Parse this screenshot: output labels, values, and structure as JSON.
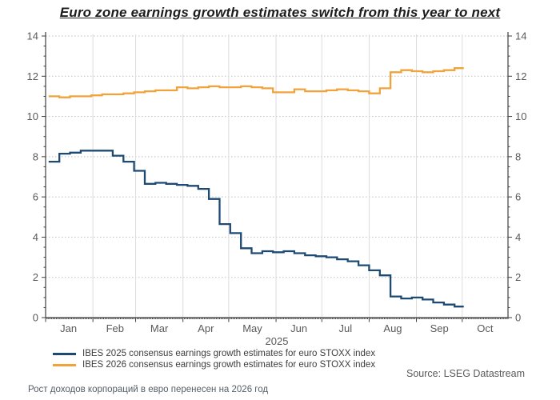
{
  "header": {
    "title": "Euro zone earnings growth estimates switch from this year to next"
  },
  "chart_data": {
    "type": "line",
    "step_interpolation": true,
    "title": "Euro zone earnings growth estimates switch from this year to next",
    "x_axis": {
      "label": "2025",
      "unit": "day of year 2025",
      "domain_days": [
        0,
        303
      ],
      "month_ticks": [
        {
          "label": "Jan",
          "start_day": 0,
          "mid_day": 15
        },
        {
          "label": "Feb",
          "start_day": 31,
          "mid_day": 45.5
        },
        {
          "label": "Mar",
          "start_day": 59,
          "mid_day": 74.5
        },
        {
          "label": "Apr",
          "start_day": 90,
          "mid_day": 105
        },
        {
          "label": "May",
          "start_day": 120,
          "mid_day": 135.5
        },
        {
          "label": "Jun",
          "start_day": 151,
          "mid_day": 166
        },
        {
          "label": "Jul",
          "start_day": 181,
          "mid_day": 196.5
        },
        {
          "label": "Aug",
          "start_day": 212,
          "mid_day": 227.5
        },
        {
          "label": "Sep",
          "start_day": 243,
          "mid_day": 258
        },
        {
          "label": "Oct",
          "start_day": 273,
          "mid_day": 288
        }
      ]
    },
    "y_axis": {
      "min": 0,
      "max": 14,
      "major_step": 2,
      "minor_step": 0.5,
      "tick_labels": [
        "0",
        "2",
        "4",
        "6",
        "8",
        "10",
        "12",
        "14"
      ],
      "sides": "both"
    },
    "grid": {
      "horizontal_dotted": true,
      "vertical": true
    },
    "legend_position": "bottom-left",
    "days": [
      2,
      9,
      16,
      23,
      30,
      37,
      44,
      51,
      58,
      65,
      72,
      79,
      86,
      93,
      100,
      107,
      114,
      121,
      128,
      135,
      142,
      149,
      156,
      163,
      170,
      177,
      184,
      191,
      198,
      205,
      212,
      219,
      226,
      233,
      240,
      247,
      254,
      261,
      268
    ],
    "series": [
      {
        "name": "IBES 2025 consensus earnings growth estimates for euro STOXX index",
        "color": "#1d4a74",
        "values": [
          7.75,
          8.15,
          8.2,
          8.3,
          8.3,
          8.3,
          8.05,
          7.75,
          7.3,
          6.65,
          6.7,
          6.65,
          6.6,
          6.55,
          6.4,
          5.9,
          4.65,
          4.2,
          3.45,
          3.2,
          3.3,
          3.25,
          3.3,
          3.2,
          3.1,
          3.05,
          3.0,
          2.9,
          2.8,
          2.6,
          2.35,
          2.1,
          1.05,
          0.95,
          1.0,
          0.9,
          0.75,
          0.65,
          0.55
        ]
      },
      {
        "name": "IBES 2026 consensus earnings growth estimates for euro STOXX index",
        "color": "#f1a33a",
        "values": [
          11.0,
          10.95,
          11.0,
          11.0,
          11.05,
          11.1,
          11.1,
          11.15,
          11.2,
          11.25,
          11.3,
          11.3,
          11.45,
          11.4,
          11.45,
          11.5,
          11.45,
          11.45,
          11.5,
          11.45,
          11.4,
          11.2,
          11.2,
          11.35,
          11.25,
          11.25,
          11.3,
          11.35,
          11.3,
          11.25,
          11.15,
          11.4,
          12.2,
          12.3,
          12.25,
          12.2,
          12.25,
          12.3,
          12.4
        ]
      }
    ]
  },
  "footer": {
    "source": "Source: LSEG Datastream",
    "caption": "Рост доходов корпораций в евро перенесен на 2026 год"
  },
  "colors": {
    "series_2025": "#1d4a74",
    "series_2026": "#f1a33a",
    "axis": "#404040",
    "grid_h": "#bfbfbf",
    "grid_v": "#dcdcdc",
    "tick_text": "#595959"
  }
}
